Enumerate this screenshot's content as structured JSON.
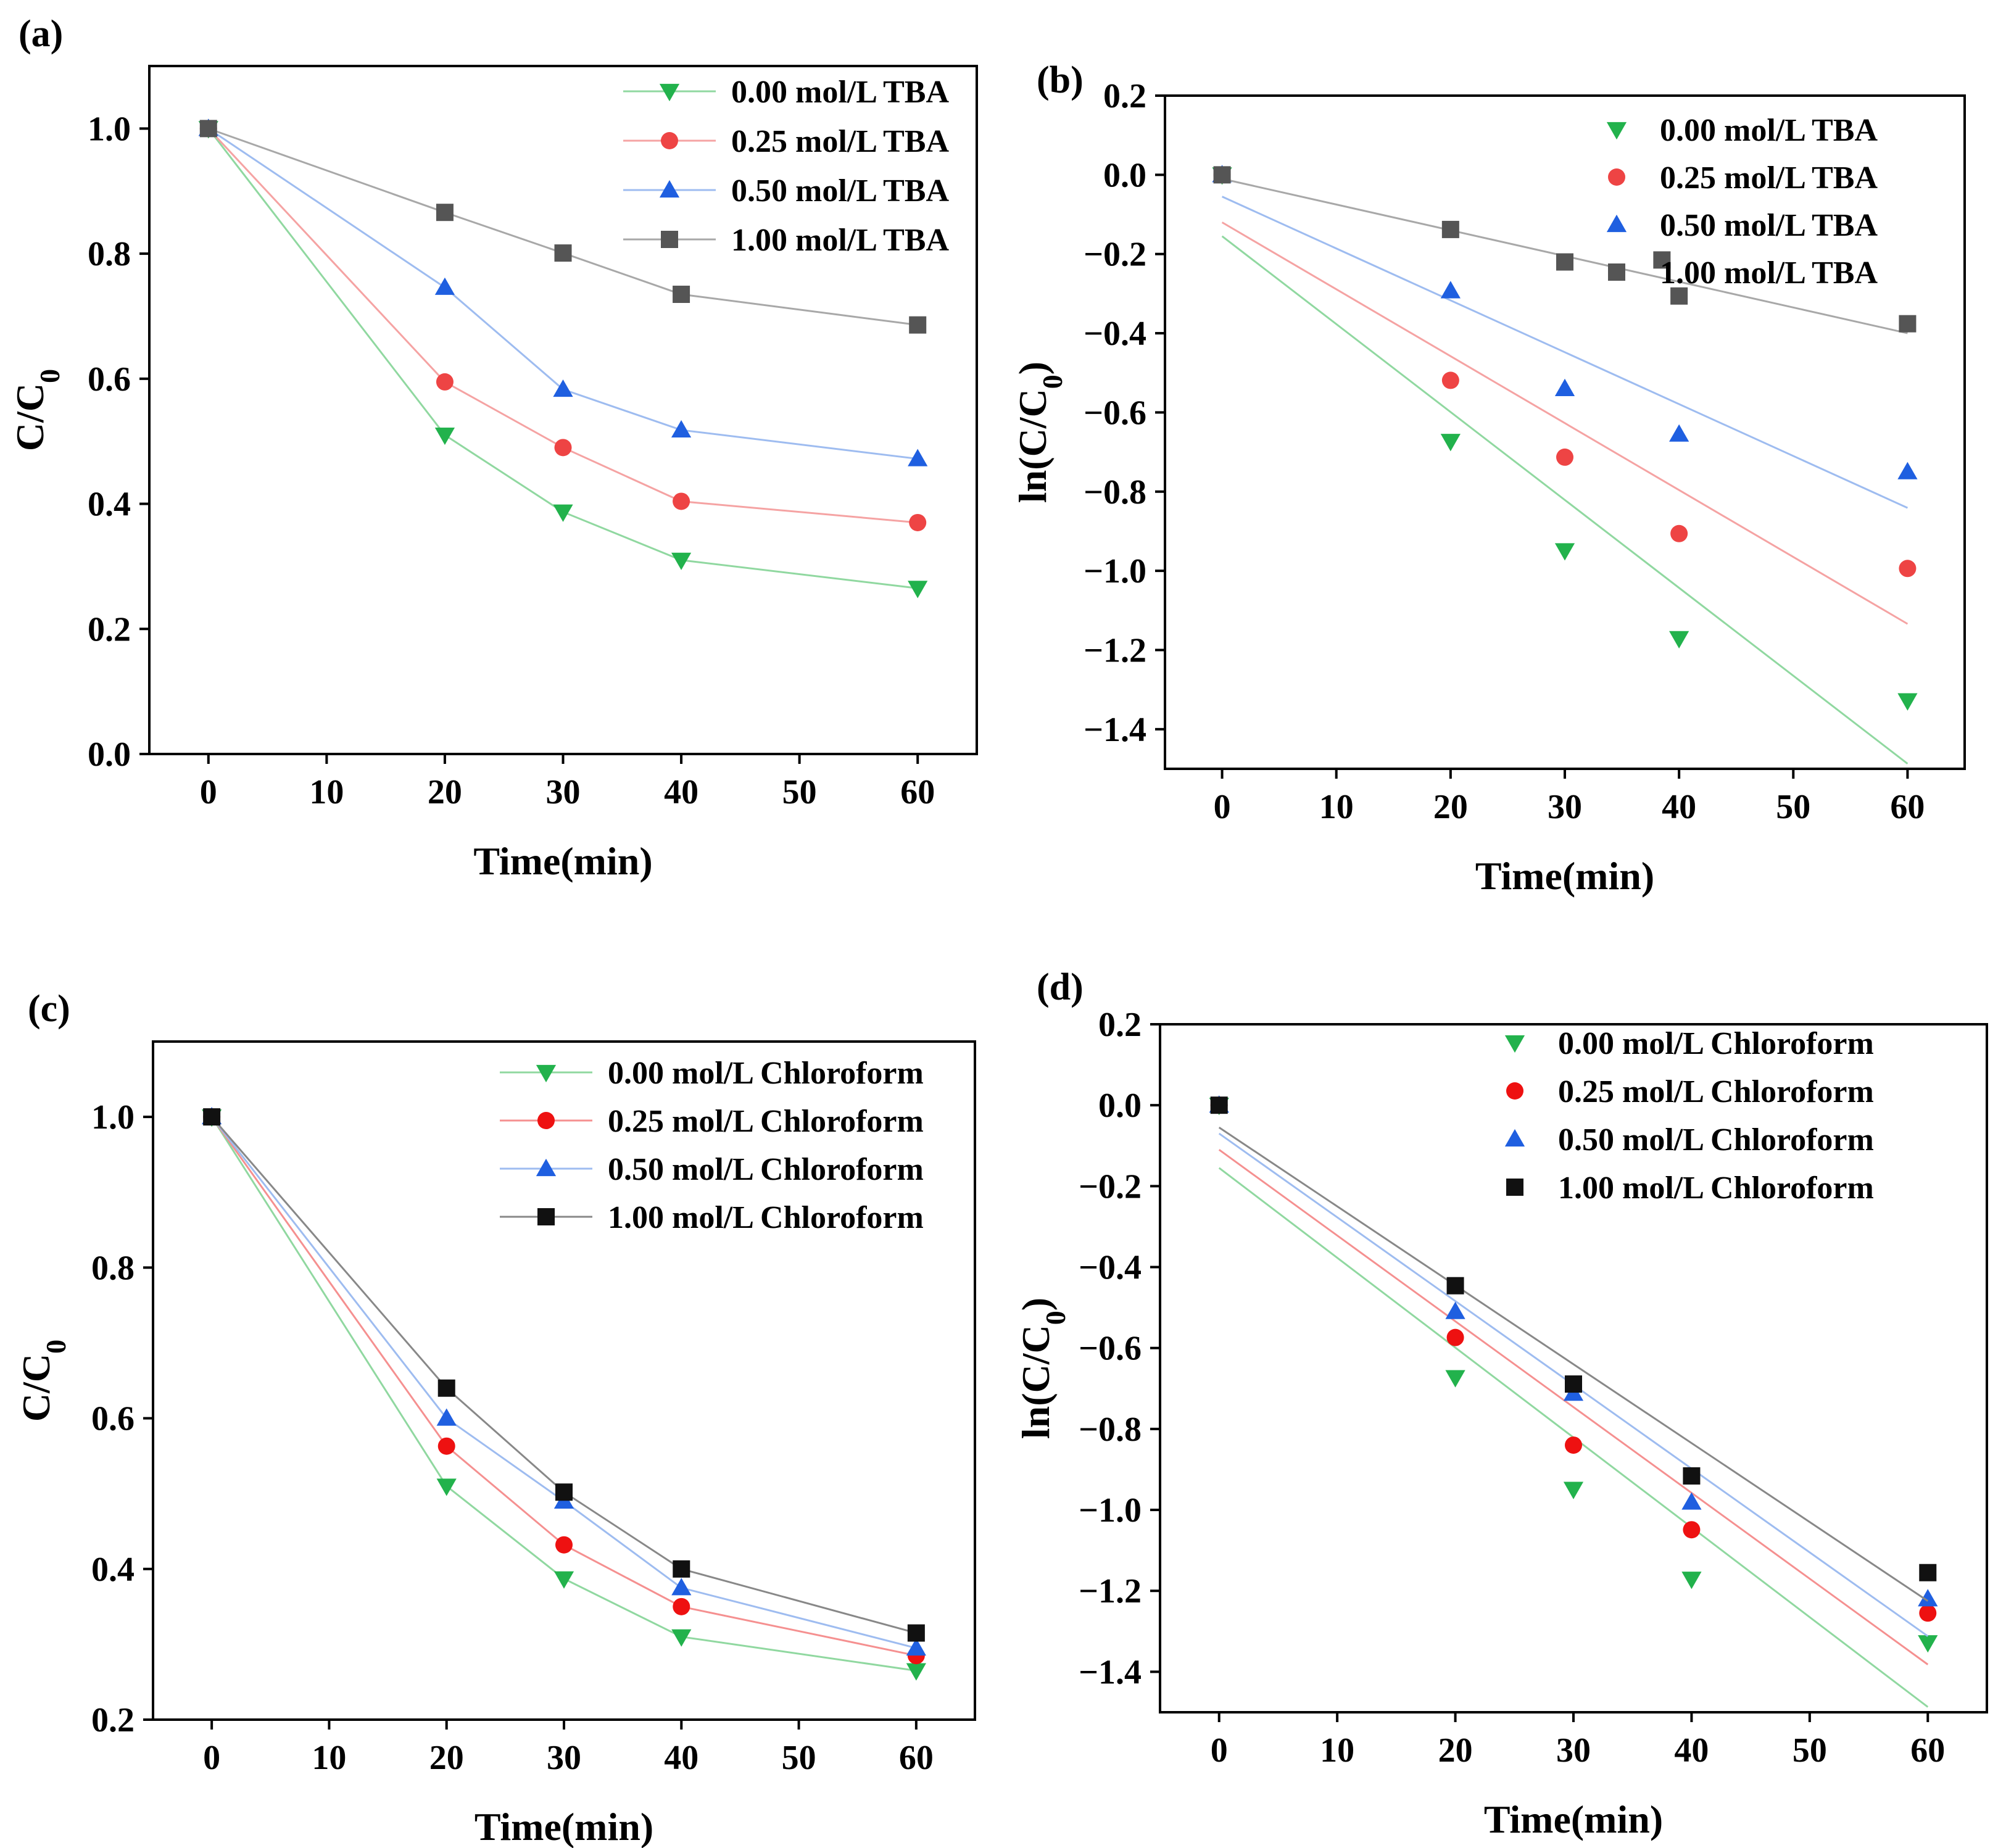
{
  "chart_data": [
    {
      "id": "a",
      "panel_label": "(a)",
      "type": "line",
      "xlabel": "Time(min)",
      "ylabel_main": "C/C",
      "ylabel_sub": "0",
      "xlim": [
        -5,
        65
      ],
      "ylim": [
        0.0,
        1.1
      ],
      "xticks": [
        0,
        10,
        20,
        30,
        40,
        50,
        60
      ],
      "yticks": [
        0.0,
        0.2,
        0.4,
        0.6,
        0.8,
        1.0
      ],
      "ytick_labels": [
        "0.0",
        "0.2",
        "0.4",
        "0.6",
        "0.8",
        "1.0"
      ],
      "fit_lines": false,
      "legend_position": "top-right",
      "x": [
        0,
        20,
        30,
        40,
        60
      ],
      "series": [
        {
          "name": "0.00 mol/L TBA",
          "marker": "triangle-down",
          "color": "#22b24c",
          "line_color": "#90d8a0",
          "values": [
            1.0,
            0.51,
            0.387,
            0.31,
            0.265
          ]
        },
        {
          "name": "0.25 mol/L TBA",
          "marker": "circle",
          "color": "#ee4444",
          "line_color": "#f5a3a3",
          "values": [
            1.0,
            0.595,
            0.49,
            0.404,
            0.37
          ]
        },
        {
          "name": "0.50 mol/L TBA",
          "marker": "triangle-up",
          "color": "#1f5fe0",
          "line_color": "#9ebcf0",
          "values": [
            1.0,
            0.746,
            0.583,
            0.518,
            0.472
          ]
        },
        {
          "name": "1.00 mol/L TBA",
          "marker": "square",
          "color": "#555555",
          "line_color": "#a8a8a8",
          "values": [
            1.0,
            0.866,
            0.801,
            0.735,
            0.686
          ]
        }
      ]
    },
    {
      "id": "b",
      "panel_label": "(b)",
      "type": "scatter",
      "xlabel": "Time(min)",
      "ylabel_main": "ln(C/C",
      "ylabel_sub": "0",
      "ylabel_end": ")",
      "xlim": [
        -5,
        65
      ],
      "ylim": [
        -1.5,
        0.2
      ],
      "xticks": [
        0,
        10,
        20,
        30,
        40,
        50,
        60
      ],
      "yticks": [
        -1.4,
        -1.2,
        -1.0,
        -0.8,
        -0.6,
        -0.4,
        -0.2,
        0.0,
        0.2
      ],
      "ytick_labels": [
        "−1.4",
        "−1.2",
        "−1.0",
        "−0.8",
        "−0.6",
        "−0.4",
        "−0.2",
        "0.0",
        "0.2"
      ],
      "fit_lines": true,
      "legend_position": "top-right",
      "x": [
        0,
        20,
        30,
        40,
        60
      ],
      "series": [
        {
          "name": "0.00 mol/L TBA",
          "marker": "triangle-down",
          "color": "#22b24c",
          "line_color": "#90d8a0",
          "values": [
            0.0,
            -0.673,
            -0.949,
            -1.171,
            -1.328
          ],
          "fit": [
            -0.155,
            -0.0222
          ]
        },
        {
          "name": "0.25 mol/L TBA",
          "marker": "circle",
          "color": "#ee4444",
          "line_color": "#f5a3a3",
          "values": [
            0.0,
            -0.519,
            -0.713,
            -0.906,
            -0.994
          ],
          "fit": [
            -0.12,
            -0.0169
          ]
        },
        {
          "name": "0.50 mol/L TBA",
          "marker": "triangle-up",
          "color": "#1f5fe0",
          "line_color": "#9ebcf0",
          "values": [
            0.0,
            -0.293,
            -0.54,
            -0.655,
            -0.75
          ],
          "fit": [
            -0.055,
            -0.0131
          ]
        },
        {
          "name": "1.00 mol/L TBA",
          "marker": "square",
          "color": "#555555",
          "line_color": "#a8a8a8",
          "values": [
            0.0,
            -0.138,
            -0.22,
            -0.306,
            -0.376
          ],
          "fit": [
            -0.01,
            -0.0065
          ],
          "extra_points": [
            [
              38.5,
              -0.215
            ]
          ]
        }
      ]
    },
    {
      "id": "c",
      "panel_label": "(c)",
      "type": "line",
      "xlabel": "Time(min)",
      "ylabel_main": "C/C",
      "ylabel_sub": "0",
      "xlim": [
        -5,
        65
      ],
      "ylim": [
        0.2,
        1.1
      ],
      "xticks": [
        0,
        10,
        20,
        30,
        40,
        50,
        60
      ],
      "yticks": [
        0.2,
        0.4,
        0.6,
        0.8,
        1.0
      ],
      "ytick_labels": [
        "0.2",
        "0.4",
        "0.6",
        "0.8",
        "1.0"
      ],
      "fit_lines": false,
      "legend_position": "top-right",
      "x": [
        0,
        20,
        30,
        40,
        60
      ],
      "series": [
        {
          "name": "0.00 mol/L Chloroform",
          "marker": "triangle-down",
          "color": "#22b24c",
          "line_color": "#90d8a0",
          "values": [
            1.0,
            0.51,
            0.387,
            0.31,
            0.265
          ]
        },
        {
          "name": "0.25 mol/L Chloroform",
          "marker": "circle",
          "color": "#ee1111",
          "line_color": "#f59090",
          "values": [
            1.0,
            0.563,
            0.432,
            0.35,
            0.285
          ]
        },
        {
          "name": "0.50 mol/L Chloroform",
          "marker": "triangle-up",
          "color": "#1f5fe0",
          "line_color": "#9ebcf0",
          "values": [
            1.0,
            0.6,
            0.49,
            0.375,
            0.295
          ]
        },
        {
          "name": "1.00 mol/L Chloroform",
          "marker": "square",
          "color": "#111111",
          "line_color": "#888888",
          "values": [
            1.0,
            0.64,
            0.502,
            0.4,
            0.315
          ]
        }
      ]
    },
    {
      "id": "d",
      "panel_label": "(d)",
      "type": "scatter",
      "xlabel": "Time(min)",
      "ylabel_main": "ln(C/C",
      "ylabel_sub": "0",
      "ylabel_end": ")",
      "xlim": [
        -5,
        65
      ],
      "ylim": [
        -1.5,
        0.2
      ],
      "xticks": [
        0,
        10,
        20,
        30,
        40,
        50,
        60
      ],
      "yticks": [
        -1.4,
        -1.2,
        -1.0,
        -0.8,
        -0.6,
        -0.4,
        -0.2,
        0.0,
        0.2
      ],
      "ytick_labels": [
        "−1.4",
        "−1.2",
        "−1.0",
        "−0.8",
        "−0.6",
        "−0.4",
        "−0.2",
        "0.0",
        "0.2"
      ],
      "fit_lines": true,
      "legend_position": "top-right",
      "x": [
        0,
        20,
        30,
        40,
        60
      ],
      "series": [
        {
          "name": "0.00 mol/L Chloroform",
          "marker": "triangle-down",
          "color": "#22b24c",
          "line_color": "#90d8a0",
          "values": [
            0.0,
            -0.673,
            -0.949,
            -1.171,
            -1.328
          ],
          "fit": [
            -0.155,
            -0.0222
          ]
        },
        {
          "name": "0.25 mol/L Chloroform",
          "marker": "circle",
          "color": "#ee1111",
          "line_color": "#f59090",
          "values": [
            0.0,
            -0.574,
            -0.84,
            -1.049,
            -1.255
          ],
          "fit": [
            -0.11,
            -0.0212
          ]
        },
        {
          "name": "0.50 mol/L Chloroform",
          "marker": "triangle-up",
          "color": "#1f5fe0",
          "line_color": "#9ebcf0",
          "values": [
            0.0,
            -0.51,
            -0.712,
            -0.981,
            -1.22
          ],
          "fit": [
            -0.07,
            -0.0207
          ]
        },
        {
          "name": "1.00 mol/L Chloroform",
          "marker": "square",
          "color": "#111111",
          "line_color": "#888888",
          "values": [
            0.0,
            -0.446,
            -0.689,
            -0.916,
            -1.155
          ],
          "fit": [
            -0.055,
            -0.0195
          ]
        }
      ]
    }
  ]
}
